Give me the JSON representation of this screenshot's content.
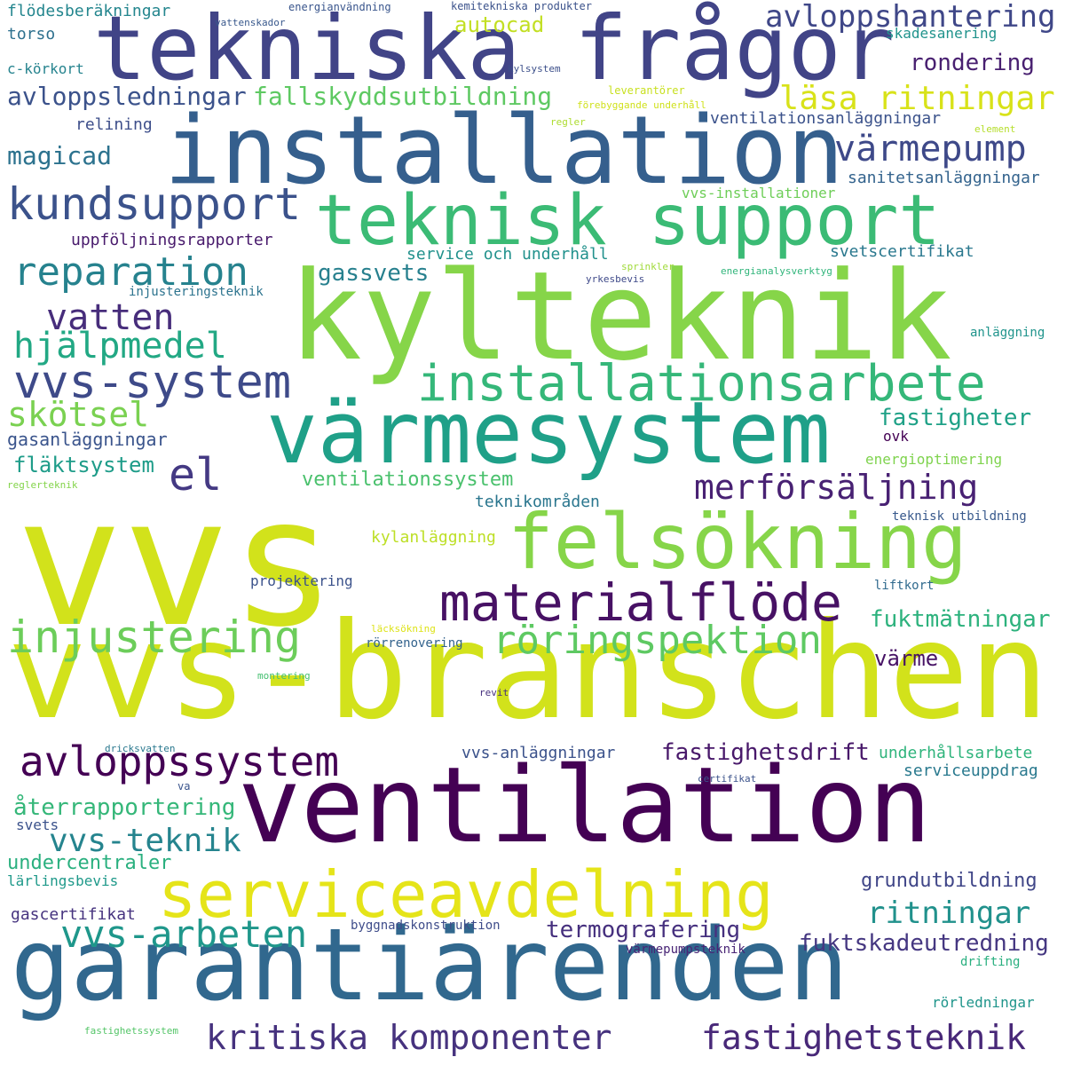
{
  "words": [
    {
      "text": "vvs",
      "color": "#d2e21b"
    },
    {
      "text": "vvs-branschen",
      "color": "#d2e21b"
    },
    {
      "text": "kylteknik",
      "color": "#86d549"
    },
    {
      "text": "ventilation",
      "color": "#440154"
    },
    {
      "text": "garantiärenden",
      "color": "#31688e"
    },
    {
      "text": "installation",
      "color": "#355f8d"
    },
    {
      "text": "tekniska frågor",
      "color": "#414487"
    },
    {
      "text": "värmesystem",
      "color": "#1fa088"
    },
    {
      "text": "teknisk support",
      "color": "#3bbb75"
    },
    {
      "text": "felsökning",
      "color": "#86d549"
    },
    {
      "text": "serviceavdelning",
      "color": "#e5e419"
    },
    {
      "text": "materialflöde",
      "color": "#471164"
    },
    {
      "text": "installationsarbete",
      "color": "#35b779"
    },
    {
      "text": "injustering",
      "color": "#6ccd5a"
    },
    {
      "text": "röringspektion",
      "color": "#5ec962"
    },
    {
      "text": "avloppssystem",
      "color": "#440154"
    },
    {
      "text": "vvs-system",
      "color": "#3e4a89"
    },
    {
      "text": "kundsupport",
      "color": "#3b528b"
    },
    {
      "text": "vvs-arbeten",
      "color": "#1f978b"
    },
    {
      "text": "kritiska komponenter",
      "color": "#46327e"
    },
    {
      "text": "fastighetsteknik",
      "color": "#482878"
    },
    {
      "text": "värmepump",
      "color": "#3e4989"
    },
    {
      "text": "reparation",
      "color": "#26828e"
    },
    {
      "text": "vatten",
      "color": "#472d7b"
    },
    {
      "text": "merförsäljning",
      "color": "#482173"
    },
    {
      "text": "hjälpmedel",
      "color": "#22a884"
    },
    {
      "text": "el",
      "color": "#443983"
    },
    {
      "text": "skötsel",
      "color": "#7ad151"
    },
    {
      "text": "vvs-teknik",
      "color": "#25848e"
    },
    {
      "text": "läsa ritningar",
      "color": "#d8e219"
    },
    {
      "text": "avloppshantering",
      "color": "#3f4788"
    },
    {
      "text": "ritningar",
      "color": "#21918c"
    },
    {
      "text": "fallskyddsutbildning",
      "color": "#5ec962"
    },
    {
      "text": "avloppsledningar",
      "color": "#3b528b"
    },
    {
      "text": "fastighetsdrift",
      "color": "#48186a"
    },
    {
      "text": "fuktskadeutredning",
      "color": "#453781"
    },
    {
      "text": "termografering",
      "color": "#46307e"
    },
    {
      "text": "återrapportering",
      "color": "#35b779"
    },
    {
      "text": "fuktmätningar",
      "color": "#2db27d"
    },
    {
      "text": "rondering",
      "color": "#481f70"
    },
    {
      "text": "magicad",
      "color": "#2c728e"
    },
    {
      "text": "gassvets",
      "color": "#27808e"
    },
    {
      "text": "fastigheter",
      "color": "#1fa187"
    },
    {
      "text": "ventilationssystem",
      "color": "#4ac16d"
    },
    {
      "text": "fläktsystem",
      "color": "#1e9c89"
    },
    {
      "text": "värme",
      "color": "#471365"
    },
    {
      "text": "grundutbildning",
      "color": "#404688"
    },
    {
      "text": "undercentraler",
      "color": "#2ab07f"
    },
    {
      "text": "autocad",
      "color": "#c2df23"
    },
    {
      "text": "gasanläggningar",
      "color": "#3a548c"
    },
    {
      "text": "service och underhåll",
      "color": "#21918c"
    },
    {
      "text": "svetscertifikat",
      "color": "#2a788e"
    },
    {
      "text": "sanitetsanläggningar",
      "color": "#33638d"
    },
    {
      "text": "ventilationsanläggningar",
      "color": "#3b528b"
    },
    {
      "text": "uppföljningsrapporter",
      "color": "#481a6c"
    },
    {
      "text": "teknikområden",
      "color": "#2a768e"
    },
    {
      "text": "vvs-anläggningar",
      "color": "#3b528b"
    },
    {
      "text": "underhållsarbete",
      "color": "#2fb47c"
    },
    {
      "text": "serviceuppdrag",
      "color": "#29798e"
    },
    {
      "text": "energioptimering",
      "color": "#7fd34e"
    },
    {
      "text": "kylanläggning",
      "color": "#bddf26"
    },
    {
      "text": "projektering",
      "color": "#3b528b"
    },
    {
      "text": "gascertifikat",
      "color": "#46337f"
    },
    {
      "text": "byggnadskonstruktion",
      "color": "#3e4c8a"
    },
    {
      "text": "vvs-installationer",
      "color": "#6ece58"
    },
    {
      "text": "skadesanering",
      "color": "#20938c"
    },
    {
      "text": "relining",
      "color": "#3d4e8a"
    },
    {
      "text": "torso",
      "color": "#2d708e"
    },
    {
      "text": "c-körkort",
      "color": "#25838e"
    },
    {
      "text": "flödesberäkningar",
      "color": "#24868e"
    },
    {
      "text": "lärlingsbevis",
      "color": "#1f998a"
    },
    {
      "text": "svets",
      "color": "#3b528b"
    },
    {
      "text": "ovk",
      "color": "#440154"
    },
    {
      "text": "rörledningar",
      "color": "#1f958b"
    },
    {
      "text": "anläggning",
      "color": "#1f948c"
    },
    {
      "text": "teknisk utbildning",
      "color": "#38598c"
    },
    {
      "text": "liftkort",
      "color": "#306a8e"
    },
    {
      "text": "injusteringsteknik",
      "color": "#2c738e"
    },
    {
      "text": "rörrenovering",
      "color": "#33638d"
    },
    {
      "text": "värmepumpsteknik",
      "color": "#482475"
    },
    {
      "text": "drifting",
      "color": "#29af7f"
    },
    {
      "text": "energianalysverktyg",
      "color": "#31b57b"
    },
    {
      "text": "energianvändning",
      "color": "#39558c"
    },
    {
      "text": "kemitekniska produkter",
      "color": "#3b528b"
    },
    {
      "text": "vattenskador",
      "color": "#38588c"
    },
    {
      "text": "kylsystem",
      "color": "#3c4f8a"
    },
    {
      "text": "leverantörer",
      "color": "#c8e020"
    },
    {
      "text": "förebyggande underhåll",
      "color": "#d0e11c"
    },
    {
      "text": "regler",
      "color": "#addc30"
    },
    {
      "text": "element",
      "color": "#b5de2b"
    },
    {
      "text": "sprinkler",
      "color": "#a0da39"
    },
    {
      "text": "yrkesbevis",
      "color": "#3e4989"
    },
    {
      "text": "reglerteknik",
      "color": "#84d44b"
    },
    {
      "text": "läcksökning",
      "color": "#dde318"
    },
    {
      "text": "montering",
      "color": "#44bf70"
    },
    {
      "text": "revit",
      "color": "#46307e"
    },
    {
      "text": "dricksvatten",
      "color": "#2a788e"
    },
    {
      "text": "va",
      "color": "#3a548c"
    },
    {
      "text": "certifikat",
      "color": "#3b528b"
    },
    {
      "text": "fastighetssystem",
      "color": "#54c568"
    }
  ]
}
